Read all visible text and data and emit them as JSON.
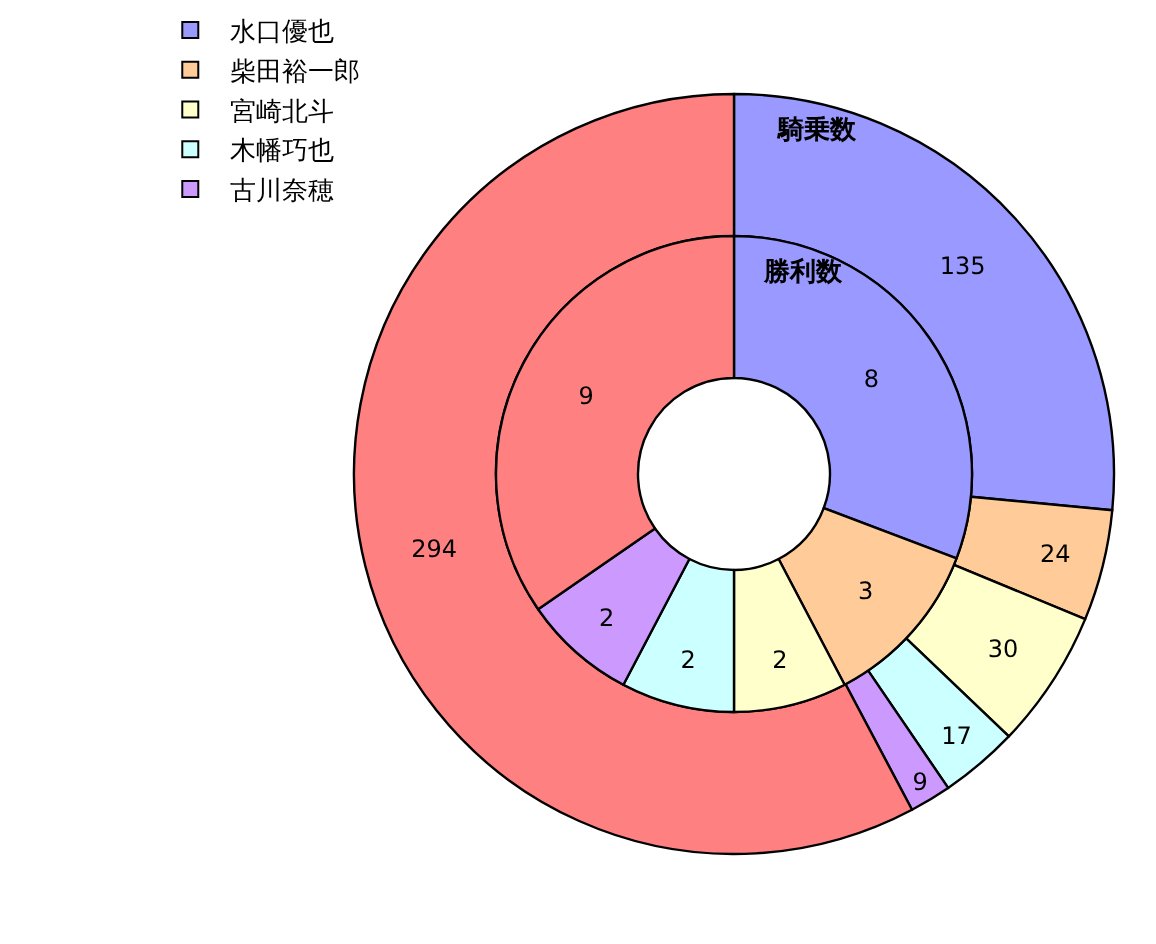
{
  "chart_data": {
    "type": "donut",
    "categories": [
      "水口優也",
      "柴田裕一郎",
      "宮崎北斗",
      "木幡巧也",
      "古川奈穂",
      null
    ],
    "colors": [
      "#9999ff",
      "#ffcc99",
      "#ffffcc",
      "#ccffff",
      "#cc99ff",
      "#ff8080"
    ],
    "series": [
      {
        "name": "騎乗数",
        "values": [
          135,
          24,
          30,
          17,
          9,
          294
        ]
      },
      {
        "name": "勝利数",
        "values": [
          8,
          3,
          2,
          2,
          2,
          9
        ]
      }
    ],
    "data_labels": true,
    "legend": "top left"
  }
}
